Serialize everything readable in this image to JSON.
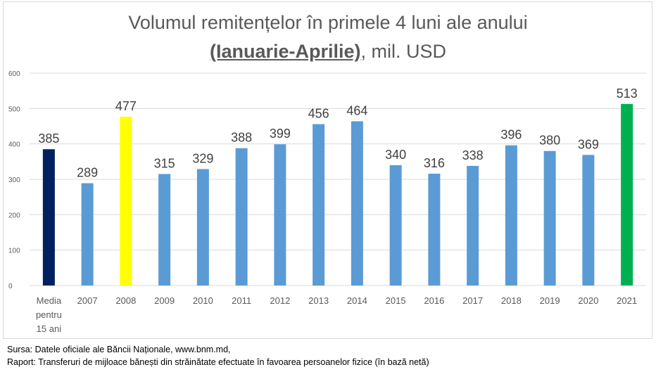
{
  "chart_data": {
    "type": "bar",
    "title_line1": "Volumul remitențelor în primele 4 luni ale anului",
    "title_period": "(Ianuarie-Aprilie)",
    "title_unit": ", mil. USD",
    "categories": [
      "Media pentru 15 ani",
      "2007",
      "2008",
      "2009",
      "2010",
      "2011",
      "2012",
      "2013",
      "2014",
      "2015",
      "2016",
      "2017",
      "2018",
      "2019",
      "2020",
      "2021"
    ],
    "values": [
      385,
      289,
      477,
      315,
      329,
      388,
      399,
      456,
      464,
      340,
      316,
      338,
      396,
      380,
      369,
      513
    ],
    "colors": [
      "#002060",
      "#5b9bd5",
      "#ffff00",
      "#5b9bd5",
      "#5b9bd5",
      "#5b9bd5",
      "#5b9bd5",
      "#5b9bd5",
      "#5b9bd5",
      "#5b9bd5",
      "#5b9bd5",
      "#5b9bd5",
      "#5b9bd5",
      "#5b9bd5",
      "#5b9bd5",
      "#00b050"
    ],
    "yticks": [
      0,
      100,
      200,
      300,
      400,
      500,
      600
    ],
    "ylim": [
      0,
      600
    ],
    "grid": true,
    "xlabel": "",
    "ylabel": ""
  },
  "footer": {
    "source": "Sursa: Datele oficiale ale Băncii Naționale, www.bnm.md,",
    "report": "Raport: Transferuri de mijloace bănești din străinătate efectuate în favoarea persoanelor fizice (în bază netă)"
  }
}
